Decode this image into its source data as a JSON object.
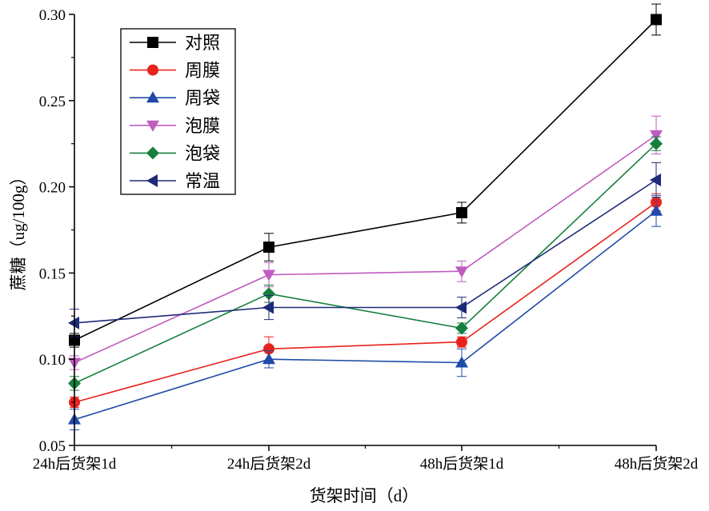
{
  "chart_data": {
    "type": "line",
    "title": "",
    "xlabel": "货架时间（d）",
    "ylabel": "蔗糖（ug/100g）",
    "categories": [
      "24h后货架1d",
      "24h后货架2d",
      "48h后货架1d",
      "48h后货架2d"
    ],
    "ylim": [
      0.05,
      0.3
    ],
    "yticks": [
      "0.05",
      "0.10",
      "0.15",
      "0.20",
      "0.25",
      "0.30"
    ],
    "grid": false,
    "legend_position": "top-left",
    "series": [
      {
        "name": "对照",
        "color": "#000000",
        "marker": "square",
        "values": [
          0.111,
          0.165,
          0.185,
          0.297
        ],
        "errors": [
          0.004,
          0.008,
          0.006,
          0.009
        ]
      },
      {
        "name": "周膜",
        "color": "#e8221c",
        "marker": "circle",
        "values": [
          0.075,
          0.106,
          0.11,
          0.191
        ],
        "errors": [
          0.003,
          0.007,
          0.003,
          0.005
        ]
      },
      {
        "name": "周袋",
        "color": "#1f4aa8",
        "marker": "triangle-up",
        "values": [
          0.065,
          0.1,
          0.098,
          0.186
        ],
        "errors": [
          0.006,
          0.005,
          0.008,
          0.009
        ]
      },
      {
        "name": "泡膜",
        "color": "#c05cc0",
        "marker": "triangle-down",
        "values": [
          0.098,
          0.149,
          0.151,
          0.23
        ],
        "errors": [
          0.004,
          0.007,
          0.006,
          0.011
        ]
      },
      {
        "name": "泡袋",
        "color": "#15803d",
        "marker": "diamond",
        "values": [
          0.086,
          0.138,
          0.118,
          0.225
        ],
        "errors": [
          0.004,
          0.005,
          0.003,
          0.004
        ]
      },
      {
        "name": "常温",
        "color": "#1e2a78",
        "marker": "triangle-left",
        "values": [
          0.121,
          0.13,
          0.13,
          0.204
        ],
        "errors": [
          0.008,
          0.007,
          0.006,
          0.01
        ]
      }
    ]
  }
}
